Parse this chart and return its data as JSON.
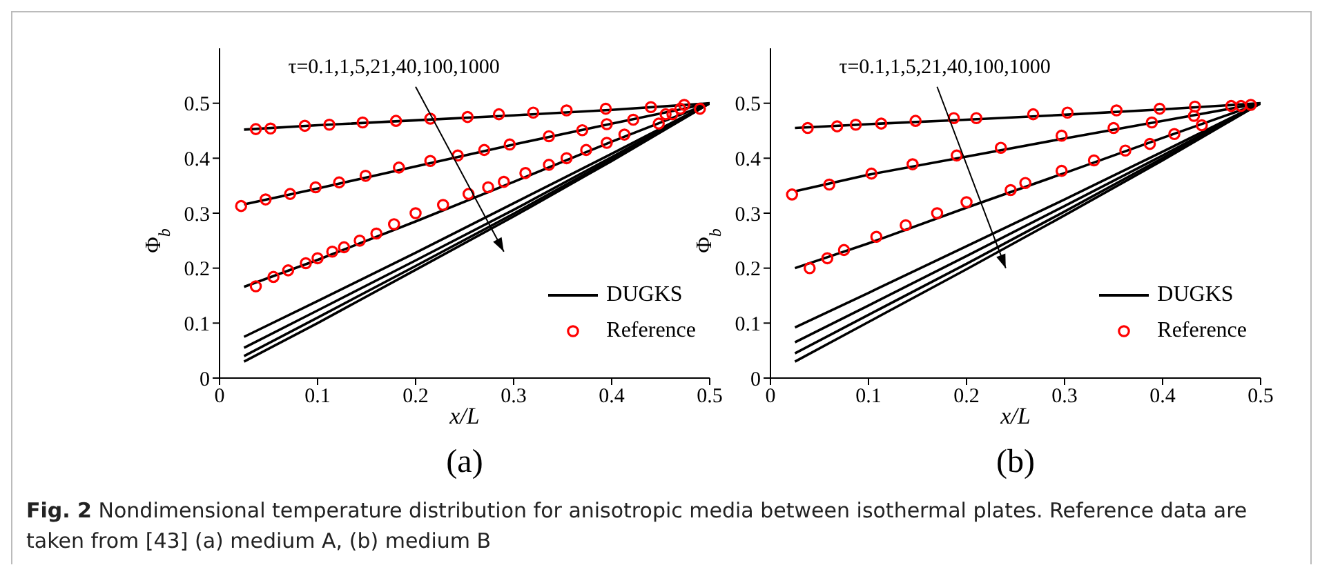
{
  "chart_data": [
    {
      "type": "line",
      "xlabel": "x/L",
      "ylabel": "Φ$_{b}$",
      "xlim": [
        0,
        0.5
      ],
      "ylim": [
        0,
        0.6
      ],
      "xticks": [
        0,
        0.1,
        0.2,
        0.3,
        0.4,
        0.5
      ],
      "yticks": [
        0,
        0.1,
        0.2,
        0.3,
        0.4,
        0.5
      ],
      "grid": false,
      "legend": "bottom right",
      "marker": "none",
      "line_style": "solid",
      "annotations": [
        "τ=0.1,1,5,21,40,100,1000",
        "(a)",
        "Fig. 2 Nondimensional temperature distribution for anisotropic media between isothermal plates. Reference data are taken from [43] (a) medium A, (b) medium B"
      ],
      "series": [
        {
          "name": "DUGKS",
          "color": "#000000",
          "x": [
            0.025,
            0.1,
            0.2,
            0.3,
            0.4,
            0.5
          ],
          "values": [
            0.452,
            0.46,
            0.469,
            0.478,
            0.488,
            0.5
          ]
        },
        {
          "color": "#000000",
          "x": [
            0.025,
            0.1,
            0.2,
            0.3,
            0.4,
            0.5
          ],
          "values": [
            0.316,
            0.345,
            0.385,
            0.425,
            0.463,
            0.5
          ]
        },
        {
          "color": "#000000",
          "x": [
            0.025,
            0.1,
            0.2,
            0.3,
            0.4,
            0.5
          ],
          "values": [
            0.166,
            0.215,
            0.285,
            0.357,
            0.43,
            0.5
          ]
        },
        {
          "color": "#000000",
          "x": [
            0.025,
            0.1,
            0.2,
            0.3,
            0.4,
            0.5
          ],
          "values": [
            0.075,
            0.14,
            0.228,
            0.318,
            0.408,
            0.5
          ]
        },
        {
          "color": "#000000",
          "x": [
            0.025,
            0.1,
            0.2,
            0.3,
            0.4,
            0.5
          ],
          "values": [
            0.055,
            0.123,
            0.214,
            0.306,
            0.402,
            0.5
          ]
        },
        {
          "color": "#000000",
          "x": [
            0.025,
            0.1,
            0.2,
            0.3,
            0.4,
            0.5
          ],
          "values": [
            0.04,
            0.11,
            0.204,
            0.299,
            0.398,
            0.5
          ]
        },
        {
          "color": "#000000",
          "x": [
            0.025,
            0.1,
            0.2,
            0.3,
            0.4,
            0.5
          ],
          "values": [
            0.03,
            0.1,
            0.197,
            0.294,
            0.395,
            0.5
          ]
        },
        {
          "name": "Reference",
          "type": "scatter",
          "marker": "circle",
          "color": "#ff0000",
          "x": [
            0.037,
            0.052,
            0.087,
            0.112,
            0.146,
            0.18,
            0.215,
            0.253,
            0.285,
            0.32,
            0.354,
            0.394,
            0.44,
            0.474,
            0.49,
            0.022,
            0.047,
            0.072,
            0.098,
            0.122,
            0.149,
            0.183,
            0.215,
            0.243,
            0.27,
            0.296,
            0.336,
            0.37,
            0.395,
            0.422,
            0.455,
            0.47,
            0.037,
            0.055,
            0.07,
            0.088,
            0.1,
            0.115,
            0.127,
            0.143,
            0.16,
            0.178,
            0.2,
            0.228,
            0.254,
            0.274,
            0.29,
            0.312,
            0.336,
            0.354,
            0.374,
            0.395,
            0.413,
            0.448,
            0.462
          ],
          "values": [
            0.453,
            0.454,
            0.459,
            0.461,
            0.465,
            0.468,
            0.472,
            0.475,
            0.48,
            0.483,
            0.487,
            0.49,
            0.493,
            0.497,
            0.49,
            0.313,
            0.325,
            0.335,
            0.347,
            0.356,
            0.368,
            0.383,
            0.395,
            0.405,
            0.415,
            0.425,
            0.44,
            0.451,
            0.462,
            0.47,
            0.48,
            0.49,
            0.167,
            0.184,
            0.196,
            0.209,
            0.218,
            0.23,
            0.238,
            0.25,
            0.263,
            0.28,
            0.3,
            0.315,
            0.335,
            0.347,
            0.357,
            0.373,
            0.388,
            0.4,
            0.415,
            0.428,
            0.443,
            0.463,
            0.48
          ]
        }
      ]
    },
    {
      "type": "line",
      "xlabel": "x/L",
      "ylabel": "Φ$_{b}$",
      "xlim": [
        0,
        0.5
      ],
      "ylim": [
        0,
        0.6
      ],
      "xticks": [
        0,
        0.1,
        0.2,
        0.3,
        0.4,
        0.5
      ],
      "yticks": [
        0,
        0.1,
        0.2,
        0.3,
        0.4,
        0.5
      ],
      "grid": false,
      "legend": "bottom right",
      "marker": "none",
      "line_style": "solid",
      "annotations": [
        "τ=0.1,1,5,21,40,100,1000",
        "(b)"
      ],
      "series": [
        {
          "name": "DUGKS",
          "color": "#000000",
          "x": [
            0.025,
            0.1,
            0.2,
            0.3,
            0.4,
            0.5
          ],
          "values": [
            0.455,
            0.462,
            0.47,
            0.479,
            0.489,
            0.5
          ]
        },
        {
          "color": "#000000",
          "x": [
            0.025,
            0.1,
            0.2,
            0.3,
            0.4,
            0.5
          ],
          "values": [
            0.34,
            0.37,
            0.403,
            0.436,
            0.468,
            0.5
          ]
        },
        {
          "color": "#000000",
          "x": [
            0.025,
            0.1,
            0.2,
            0.3,
            0.4,
            0.5
          ],
          "values": [
            0.2,
            0.245,
            0.31,
            0.373,
            0.437,
            0.5
          ]
        },
        {
          "color": "#000000",
          "x": [
            0.025,
            0.1,
            0.2,
            0.3,
            0.4,
            0.5
          ],
          "values": [
            0.092,
            0.155,
            0.24,
            0.325,
            0.412,
            0.5
          ]
        },
        {
          "color": "#000000",
          "x": [
            0.025,
            0.1,
            0.2,
            0.3,
            0.4,
            0.5
          ],
          "values": [
            0.065,
            0.132,
            0.222,
            0.313,
            0.405,
            0.5
          ]
        },
        {
          "color": "#000000",
          "x": [
            0.025,
            0.1,
            0.2,
            0.3,
            0.4,
            0.5
          ],
          "values": [
            0.045,
            0.115,
            0.208,
            0.303,
            0.4,
            0.5
          ]
        },
        {
          "color": "#000000",
          "x": [
            0.025,
            0.1,
            0.2,
            0.3,
            0.4,
            0.5
          ],
          "values": [
            0.03,
            0.102,
            0.198,
            0.296,
            0.396,
            0.5
          ]
        },
        {
          "name": "Reference",
          "type": "scatter",
          "marker": "circle",
          "color": "#ff0000",
          "x": [
            0.038,
            0.068,
            0.087,
            0.113,
            0.148,
            0.187,
            0.21,
            0.268,
            0.303,
            0.353,
            0.397,
            0.433,
            0.47,
            0.48,
            0.49,
            0.022,
            0.06,
            0.103,
            0.145,
            0.19,
            0.235,
            0.297,
            0.35,
            0.389,
            0.432,
            0.04,
            0.058,
            0.075,
            0.108,
            0.138,
            0.17,
            0.2,
            0.245,
            0.26,
            0.297,
            0.33,
            0.362,
            0.387,
            0.412,
            0.44
          ],
          "values": [
            0.455,
            0.458,
            0.461,
            0.463,
            0.468,
            0.473,
            0.473,
            0.48,
            0.483,
            0.487,
            0.49,
            0.494,
            0.495,
            0.495,
            0.497,
            0.334,
            0.352,
            0.372,
            0.389,
            0.405,
            0.419,
            0.441,
            0.455,
            0.465,
            0.477,
            0.2,
            0.218,
            0.233,
            0.257,
            0.278,
            0.3,
            0.32,
            0.342,
            0.355,
            0.377,
            0.396,
            0.414,
            0.426,
            0.444,
            0.46
          ]
        }
      ]
    }
  ]
}
